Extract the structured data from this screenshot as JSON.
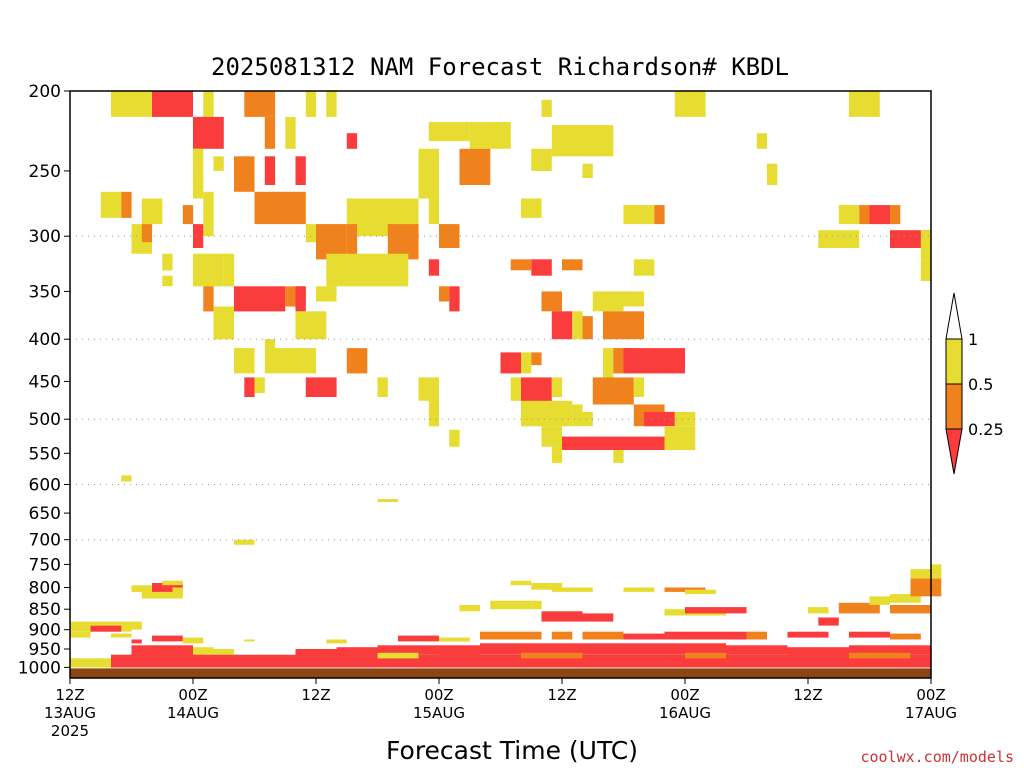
{
  "chart_data": {
    "type": "heatmap",
    "title": "2025081312 NAM Forecast Richardson# KBDL",
    "xlabel": "Forecast Time (UTC)",
    "ylabel": "",
    "x_range_hours": [
      0,
      84
    ],
    "y_scale": "log",
    "y_range_hpa": [
      1030,
      200
    ],
    "y_ticks": [
      200,
      250,
      300,
      350,
      400,
      450,
      500,
      550,
      600,
      650,
      700,
      750,
      800,
      850,
      900,
      950,
      1000
    ],
    "grid_levels": [
      300,
      400,
      500,
      600,
      700
    ],
    "x_ticks": [
      {
        "hour": 0,
        "line1": "12Z",
        "line2": "13AUG",
        "line3": "2025"
      },
      {
        "hour": 12,
        "line1": "00Z",
        "line2": "14AUG",
        "line3": ""
      },
      {
        "hour": 24,
        "line1": "12Z",
        "line2": "",
        "line3": ""
      },
      {
        "hour": 36,
        "line1": "00Z",
        "line2": "15AUG",
        "line3": ""
      },
      {
        "hour": 48,
        "line1": "12Z",
        "line2": "",
        "line3": ""
      },
      {
        "hour": 60,
        "line1": "00Z",
        "line2": "16AUG",
        "line3": ""
      },
      {
        "hour": 72,
        "line1": "12Z",
        "line2": "",
        "line3": ""
      },
      {
        "hour": 84,
        "line1": "00Z",
        "line2": "17AUG",
        "line3": ""
      }
    ],
    "colorbar": {
      "labels": [
        "1",
        "0.5",
        "0.25"
      ],
      "bins": [
        {
          "range": "> 1",
          "color": "#ffffff"
        },
        {
          "range": "0.5 - 1",
          "color": "#e6dc32"
        },
        {
          "range": "0.25 - 0.5",
          "color": "#f0821e"
        },
        {
          "range": "< 0.25",
          "color": "#fa3c3c"
        }
      ]
    },
    "colors": {
      "1": "#e6dc32",
      "2": "#f0821e",
      "3": "#fa3c3c",
      "ground": "#8b4513"
    },
    "cells": [
      [
        4,
        200,
        6,
        215,
        1
      ],
      [
        8,
        200,
        4,
        215,
        3
      ],
      [
        13,
        200,
        1,
        215,
        1
      ],
      [
        17,
        200,
        3,
        215,
        2
      ],
      [
        23,
        200,
        1,
        215,
        1
      ],
      [
        25,
        200,
        1,
        215,
        1
      ],
      [
        46,
        205,
        1,
        215,
        1
      ],
      [
        59,
        200,
        3,
        215,
        1
      ],
      [
        76,
        200,
        3,
        215,
        1
      ],
      [
        12,
        215,
        3,
        235,
        3
      ],
      [
        19,
        215,
        1,
        235,
        2
      ],
      [
        21,
        215,
        1,
        235,
        1
      ],
      [
        35,
        218,
        4,
        230,
        1
      ],
      [
        39,
        218,
        4,
        235,
        1
      ],
      [
        27,
        225,
        1,
        235,
        3
      ],
      [
        47,
        220,
        6,
        240,
        1
      ],
      [
        67,
        225,
        1,
        235,
        1
      ],
      [
        12,
        235,
        1,
        270,
        1
      ],
      [
        14,
        240,
        1,
        250,
        1
      ],
      [
        16,
        240,
        2,
        265,
        2
      ],
      [
        19,
        240,
        1,
        260,
        3
      ],
      [
        22,
        240,
        1,
        260,
        3
      ],
      [
        34,
        235,
        2,
        270,
        1
      ],
      [
        38,
        235,
        3,
        260,
        2
      ],
      [
        45,
        235,
        2,
        250,
        1
      ],
      [
        50,
        245,
        1,
        255,
        1
      ],
      [
        68,
        245,
        1,
        260,
        1
      ],
      [
        3,
        265,
        2,
        285,
        1
      ],
      [
        5,
        265,
        1,
        285,
        2
      ],
      [
        7,
        270,
        2,
        290,
        1
      ],
      [
        11,
        275,
        1,
        290,
        2
      ],
      [
        13,
        265,
        1,
        300,
        1
      ],
      [
        18,
        265,
        5,
        290,
        2
      ],
      [
        27,
        270,
        1,
        300,
        1
      ],
      [
        28,
        270,
        6,
        300,
        1
      ],
      [
        35,
        270,
        1,
        290,
        1
      ],
      [
        44,
        270,
        2,
        285,
        1
      ],
      [
        54,
        275,
        3,
        290,
        1
      ],
      [
        57,
        275,
        1,
        290,
        2
      ],
      [
        75,
        275,
        2,
        290,
        1
      ],
      [
        77,
        275,
        1,
        290,
        2
      ],
      [
        78,
        275,
        2,
        290,
        3
      ],
      [
        80,
        275,
        1,
        290,
        2
      ],
      [
        6,
        290,
        2,
        315,
        1
      ],
      [
        7,
        290,
        1,
        305,
        2
      ],
      [
        12,
        290,
        1,
        310,
        3
      ],
      [
        23,
        290,
        1,
        305,
        1
      ],
      [
        24,
        290,
        3,
        320,
        2
      ],
      [
        27,
        290,
        1,
        320,
        2
      ],
      [
        31,
        290,
        3,
        320,
        2
      ],
      [
        36,
        290,
        2,
        310,
        2
      ],
      [
        73,
        295,
        4,
        310,
        1
      ],
      [
        80,
        295,
        4,
        310,
        3
      ],
      [
        83,
        295,
        1,
        320,
        1
      ],
      [
        9,
        315,
        1,
        330,
        1
      ],
      [
        12,
        315,
        3,
        345,
        1
      ],
      [
        15,
        315,
        1,
        345,
        1
      ],
      [
        25,
        315,
        8,
        345,
        1
      ],
      [
        35,
        320,
        1,
        335,
        3
      ],
      [
        43,
        320,
        2,
        330,
        2
      ],
      [
        45,
        320,
        2,
        335,
        3
      ],
      [
        48,
        320,
        2,
        330,
        2
      ],
      [
        55,
        320,
        2,
        335,
        1
      ],
      [
        83,
        320,
        1,
        340,
        1
      ],
      [
        9,
        335,
        1,
        345,
        1
      ],
      [
        13,
        345,
        1,
        370,
        2
      ],
      [
        16,
        345,
        5,
        370,
        3
      ],
      [
        21,
        345,
        2,
        365,
        2
      ],
      [
        22,
        345,
        1,
        370,
        3
      ],
      [
        24,
        345,
        2,
        360,
        1
      ],
      [
        36,
        345,
        1,
        360,
        2
      ],
      [
        37,
        345,
        1,
        370,
        3
      ],
      [
        46,
        350,
        2,
        370,
        2
      ],
      [
        51,
        350,
        3,
        370,
        1
      ],
      [
        54,
        350,
        2,
        365,
        1
      ],
      [
        14,
        365,
        2,
        400,
        1
      ],
      [
        22,
        370,
        3,
        400,
        1
      ],
      [
        47,
        370,
        2,
        400,
        3
      ],
      [
        49,
        370,
        1,
        400,
        1
      ],
      [
        50,
        375,
        1,
        400,
        2
      ],
      [
        52,
        370,
        4,
        400,
        2
      ],
      [
        16,
        410,
        2,
        440,
        1
      ],
      [
        19,
        400,
        1,
        440,
        1
      ],
      [
        20,
        410,
        4,
        440,
        1
      ],
      [
        27,
        410,
        2,
        440,
        2
      ],
      [
        42,
        415,
        2,
        440,
        3
      ],
      [
        44,
        415,
        1,
        440,
        1
      ],
      [
        45,
        415,
        1,
        430,
        2
      ],
      [
        52,
        410,
        1,
        450,
        1
      ],
      [
        53,
        410,
        2,
        440,
        2
      ],
      [
        54,
        410,
        6,
        440,
        3
      ],
      [
        17,
        445,
        1,
        470,
        3
      ],
      [
        18,
        445,
        1,
        465,
        1
      ],
      [
        23,
        445,
        3,
        470,
        3
      ],
      [
        30,
        445,
        1,
        470,
        1
      ],
      [
        34,
        445,
        2,
        475,
        1
      ],
      [
        43,
        445,
        1,
        475,
        1
      ],
      [
        44,
        445,
        3,
        480,
        3
      ],
      [
        47,
        445,
        1,
        470,
        1
      ],
      [
        51,
        445,
        4,
        480,
        2
      ],
      [
        55,
        445,
        1,
        470,
        1
      ],
      [
        35,
        470,
        1,
        510,
        1
      ],
      [
        44,
        475,
        5,
        510,
        1
      ],
      [
        49,
        480,
        1,
        510,
        1
      ],
      [
        50,
        490,
        1,
        510,
        1
      ],
      [
        55,
        480,
        3,
        510,
        2
      ],
      [
        56,
        490,
        3,
        510,
        3
      ],
      [
        59,
        490,
        2,
        510,
        1
      ],
      [
        37,
        515,
        1,
        540,
        1
      ],
      [
        46,
        510,
        2,
        540,
        1
      ],
      [
        48,
        525,
        10,
        545,
        3
      ],
      [
        58,
        510,
        3,
        545,
        1
      ],
      [
        47,
        540,
        1,
        565,
        1
      ],
      [
        53,
        545,
        1,
        565,
        1
      ],
      [
        5,
        585,
        1,
        595,
        1
      ],
      [
        30,
        625,
        2,
        630,
        1
      ],
      [
        16,
        700,
        2,
        710,
        1
      ],
      [
        6,
        795,
        2,
        810,
        1
      ],
      [
        8,
        790,
        3,
        810,
        3
      ],
      [
        10,
        800,
        1,
        815,
        1
      ],
      [
        9,
        785,
        2,
        795,
        1
      ],
      [
        7,
        810,
        4,
        825,
        1
      ],
      [
        43,
        785,
        2,
        795,
        1
      ],
      [
        45,
        790,
        3,
        805,
        1
      ],
      [
        47,
        800,
        4,
        810,
        1
      ],
      [
        54,
        800,
        3,
        810,
        1
      ],
      [
        58,
        800,
        4,
        810,
        2
      ],
      [
        60,
        805,
        3,
        815,
        1
      ],
      [
        38,
        840,
        2,
        855,
        1
      ],
      [
        41,
        830,
        4,
        850,
        1
      ],
      [
        45,
        830,
        1,
        850,
        1
      ],
      [
        58,
        850,
        6,
        865,
        1
      ],
      [
        60,
        845,
        6,
        860,
        3
      ],
      [
        72,
        845,
        2,
        860,
        1
      ],
      [
        75,
        835,
        4,
        860,
        2
      ],
      [
        78,
        820,
        2,
        840,
        1
      ],
      [
        80,
        815,
        3,
        835,
        1
      ],
      [
        82,
        780,
        3,
        820,
        2
      ],
      [
        82,
        760,
        3,
        780,
        1
      ],
      [
        84,
        750,
        1,
        765,
        1
      ],
      [
        0,
        880,
        6,
        905,
        1
      ],
      [
        2,
        890,
        3,
        905,
        3
      ],
      [
        6,
        880,
        1,
        900,
        1
      ],
      [
        46,
        855,
        4,
        880,
        3
      ],
      [
        50,
        860,
        3,
        880,
        3
      ],
      [
        73,
        870,
        2,
        890,
        3
      ],
      [
        80,
        840,
        4,
        860,
        2
      ],
      [
        0,
        905,
        2,
        920,
        1
      ],
      [
        4,
        910,
        2,
        920,
        1
      ],
      [
        6,
        925,
        1,
        935,
        3
      ],
      [
        8,
        915,
        3,
        930,
        3
      ],
      [
        11,
        920,
        2,
        935,
        1
      ],
      [
        17,
        925,
        1,
        930,
        1
      ],
      [
        25,
        925,
        2,
        935,
        1
      ],
      [
        32,
        915,
        4,
        930,
        3
      ],
      [
        36,
        920,
        3,
        930,
        1
      ],
      [
        40,
        905,
        6,
        925,
        2
      ],
      [
        47,
        905,
        2,
        925,
        2
      ],
      [
        50,
        905,
        4,
        925,
        2
      ],
      [
        54,
        910,
        4,
        925,
        3
      ],
      [
        58,
        905,
        8,
        925,
        3
      ],
      [
        66,
        905,
        2,
        925,
        2
      ],
      [
        70,
        905,
        4,
        920,
        3
      ],
      [
        76,
        905,
        4,
        920,
        3
      ],
      [
        80,
        910,
        3,
        925,
        2
      ],
      [
        6,
        940,
        6,
        975,
        3
      ],
      [
        12,
        945,
        2,
        965,
        1
      ],
      [
        14,
        950,
        2,
        965,
        1
      ],
      [
        22,
        950,
        4,
        970,
        3
      ],
      [
        26,
        945,
        4,
        970,
        3
      ],
      [
        30,
        940,
        6,
        965,
        3
      ],
      [
        36,
        940,
        4,
        970,
        3
      ],
      [
        40,
        935,
        8,
        965,
        3
      ],
      [
        48,
        935,
        10,
        965,
        3
      ],
      [
        58,
        935,
        6,
        965,
        3
      ],
      [
        64,
        940,
        6,
        965,
        3
      ],
      [
        70,
        945,
        6,
        970,
        3
      ],
      [
        76,
        940,
        8,
        965,
        3
      ],
      [
        4,
        965,
        80,
        1000,
        3
      ],
      [
        0,
        975,
        4,
        1000,
        1
      ],
      [
        60,
        960,
        4,
        975,
        2
      ],
      [
        76,
        960,
        6,
        975,
        2
      ],
      [
        44,
        960,
        6,
        975,
        2
      ],
      [
        30,
        960,
        4,
        975,
        1
      ]
    ]
  }
}
